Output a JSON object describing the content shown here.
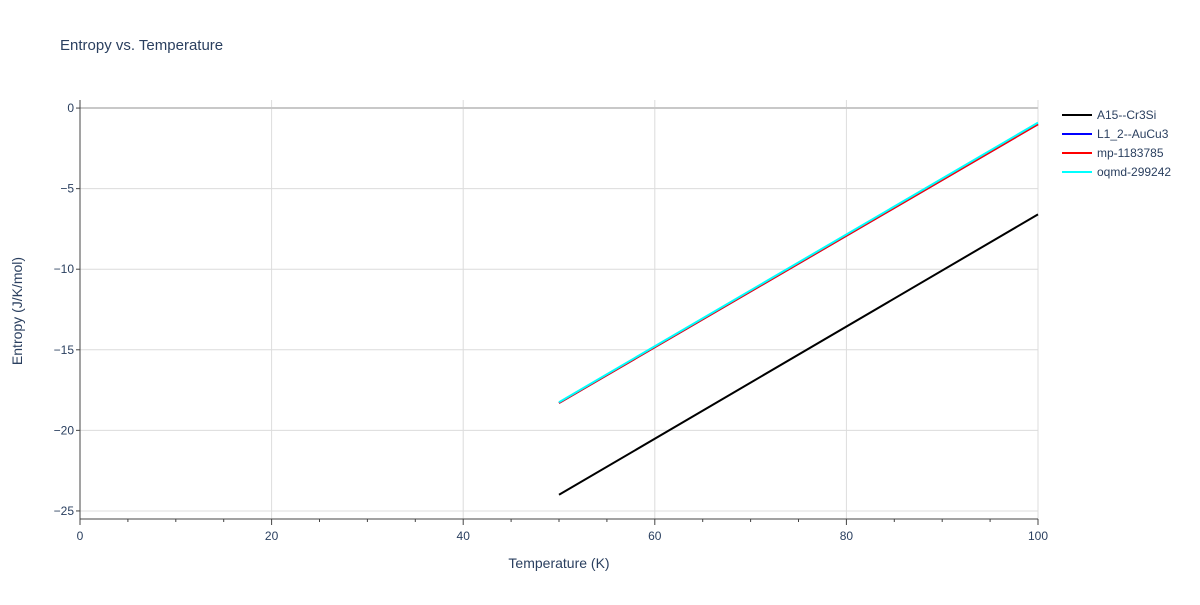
{
  "chart_data": {
    "type": "line",
    "title": "Entropy vs. Temperature",
    "xlabel": "Temperature (K)",
    "ylabel": "Entropy (J/K/mol)",
    "xlim": [
      0,
      100
    ],
    "ylim": [
      -25.5,
      0.5
    ],
    "x_ticks": [
      0,
      20,
      40,
      60,
      80,
      100
    ],
    "x_tick_labels": [
      "0",
      "20",
      "40",
      "60",
      "80",
      "100"
    ],
    "y_ticks": [
      0,
      -5,
      -10,
      -15,
      -20,
      -25
    ],
    "y_tick_labels": [
      "0",
      "−5",
      "−10",
      "−15",
      "−20",
      "−25"
    ],
    "grid": true,
    "legend_position": "top-right",
    "series": [
      {
        "name": "A15--Cr3Si",
        "color": "#000000",
        "x": [
          50,
          100
        ],
        "y": [
          -24.0,
          -6.6
        ]
      },
      {
        "name": "L1_2--AuCu3",
        "color": "#0000ff",
        "x": [
          50,
          100
        ],
        "y": [
          -18.3,
          -1.0
        ]
      },
      {
        "name": "mp-1183785",
        "color": "#ff0000",
        "x": [
          50,
          100
        ],
        "y": [
          -18.3,
          -1.0
        ]
      },
      {
        "name": "oqmd-299242",
        "color": "#00ffff",
        "x": [
          50,
          100
        ],
        "y": [
          -18.25,
          -0.9
        ]
      }
    ]
  }
}
